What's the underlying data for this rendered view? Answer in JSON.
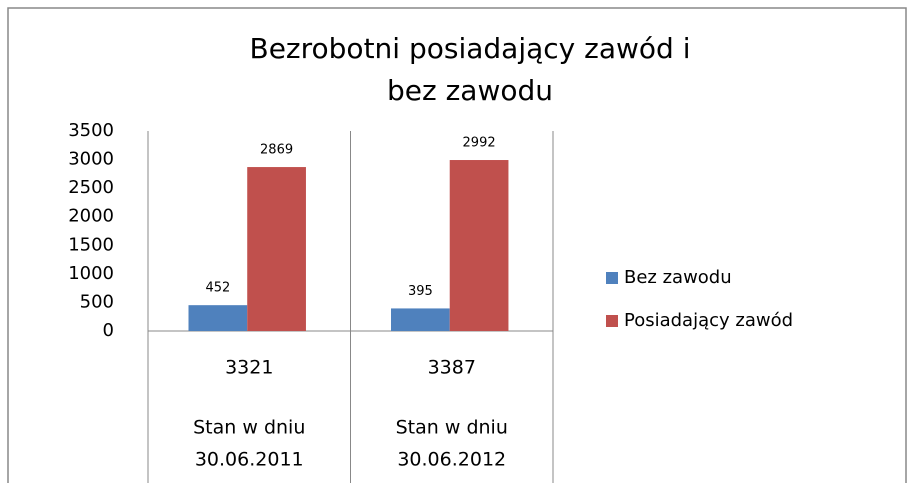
{
  "chart_data": {
    "type": "bar",
    "title": "Bezrobotni posiadający zawód i bez zawodu",
    "categories": [
      [
        "Stan w dniu",
        "30.06.2011"
      ],
      [
        "Stan w dniu",
        "30.06.2012"
      ]
    ],
    "category_totals": [
      3321,
      3387
    ],
    "series": [
      {
        "name": "Bez zawodu",
        "color": "#4f81bd",
        "values": [
          452,
          395
        ]
      },
      {
        "name": "Posiadający zawód",
        "color": "#c0504d",
        "values": [
          2869,
          2992
        ]
      }
    ],
    "ylim": [
      0,
      3500
    ],
    "yticks": [
      0,
      500,
      1000,
      1500,
      2000,
      2500,
      3000,
      3500
    ],
    "grid": false,
    "legend": "right"
  }
}
